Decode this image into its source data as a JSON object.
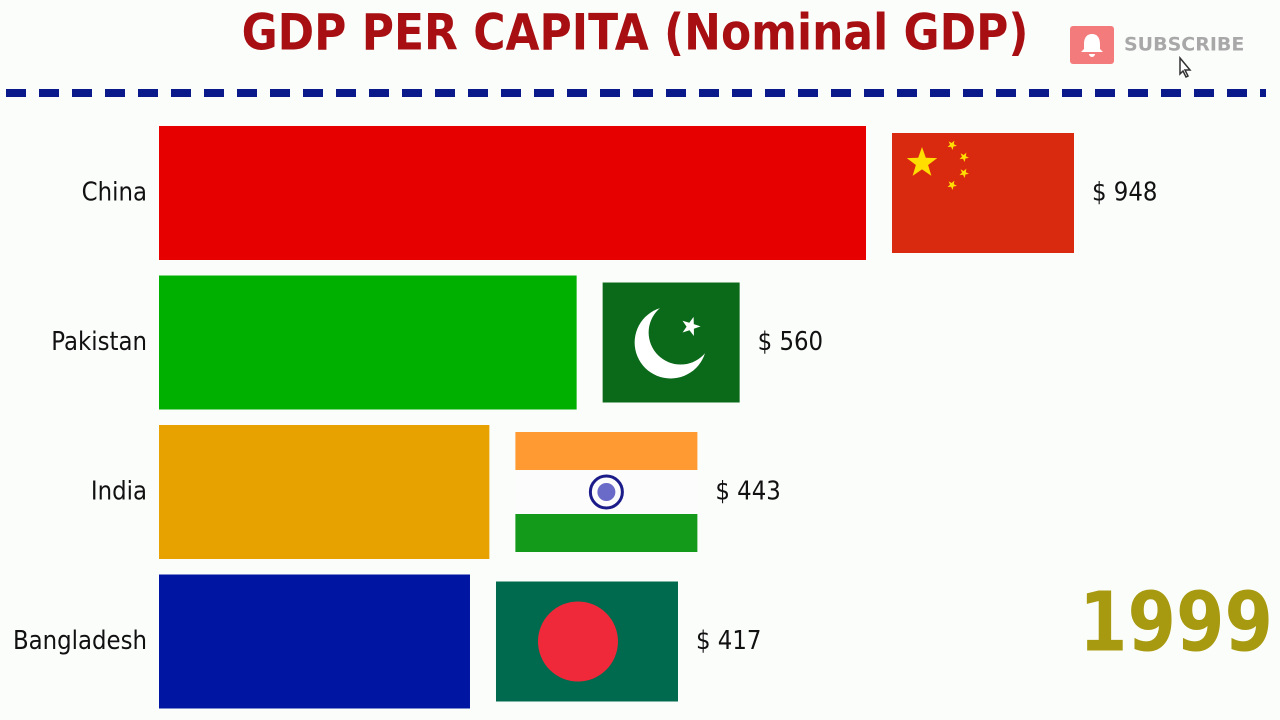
{
  "chart_data": {
    "type": "bar",
    "orientation": "horizontal",
    "title": "GDP PER CAPITA (Nominal GDP)",
    "categories": [
      "China",
      "Pakistan",
      "India",
      "Bangladesh"
    ],
    "values": [
      948,
      560,
      443,
      417
    ],
    "value_labels": [
      "$ 948",
      "$ 560",
      "$ 443",
      "$ 417"
    ],
    "colors": [
      "#e60000",
      "#00b000",
      "#e8a200",
      "#0016a2"
    ],
    "annotation": "1999"
  },
  "subscribe_button": "SUBSCRIBE"
}
